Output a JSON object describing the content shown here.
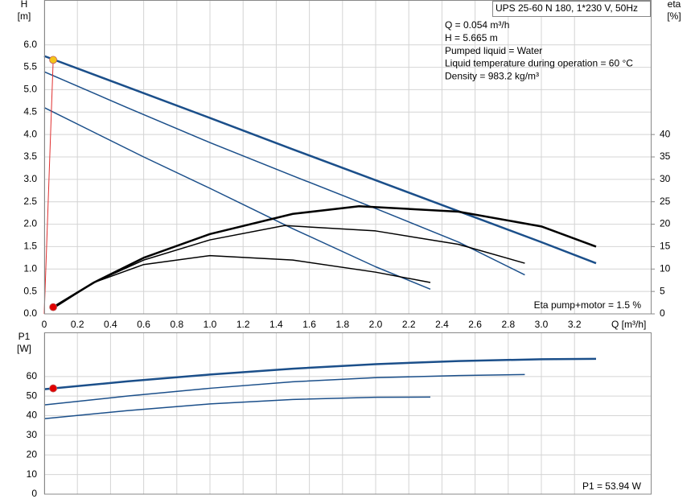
{
  "chart_data": [
    {
      "type": "line",
      "title": "UPS 25-60 N 180, 1*230 V, 50Hz",
      "y_label": "H",
      "y_unit": "[m]",
      "y2_label": "eta",
      "y2_unit": "[%]",
      "x_label": "Q [m³/h]",
      "info": [
        "Q = 0.054 m³/h",
        "H = 5.665 m",
        "Pumped liquid = Water",
        "Liquid temperature during operation = 60 °C",
        "Density = 983.2 kg/m³"
      ],
      "annotation": "Eta pump+motor = 1.5 %",
      "xlim": [
        0,
        3.665
      ],
      "ylim": [
        0,
        7
      ],
      "y2lim": [
        0,
        70
      ],
      "grid": true,
      "xticks": [
        {
          "value": 0,
          "label": "0"
        },
        0.2,
        0.4,
        0.6,
        0.8,
        {
          "value": 1,
          "label": "1.0"
        },
        1.2,
        1.4,
        1.6,
        1.8,
        {
          "value": 2,
          "label": "2.0"
        },
        2.2,
        2.4,
        2.6,
        2.8,
        {
          "value": 3,
          "label": "3.0"
        },
        3.2
      ],
      "yticks": [
        {
          "value": 0,
          "label": "0.0"
        },
        0.5,
        {
          "value": 1,
          "label": "1.0"
        },
        1.5,
        {
          "value": 2,
          "label": "2.0"
        },
        2.5,
        {
          "value": 3,
          "label": "3.0"
        },
        3.5,
        {
          "value": 4,
          "label": "4.0"
        },
        4.5,
        {
          "value": 5,
          "label": "5.0"
        },
        5.5,
        {
          "value": 6,
          "label": "6.0"
        }
      ],
      "y2ticks": [
        0,
        5,
        10,
        15,
        20,
        25,
        30,
        35,
        40
      ],
      "series": [
        {
          "color": "#1b4f8a",
          "line_width": 2.5,
          "x": [
            0,
            0.5,
            1,
            1.5,
            2,
            2.5,
            3,
            3.33
          ],
          "values": [
            5.75,
            5.06,
            4.37,
            3.67,
            2.98,
            2.29,
            1.6,
            1.13
          ]
        },
        {
          "color": "#1b4f8a",
          "line_width": 1.5,
          "x": [
            0,
            0.5,
            1,
            1.5,
            2,
            2.5,
            2.9
          ],
          "values": [
            5.4,
            4.6,
            3.82,
            3.08,
            2.35,
            1.6,
            0.87
          ]
        },
        {
          "color": "#1b4f8a",
          "line_width": 1.5,
          "x": [
            0,
            0.3,
            0.6,
            1,
            1.5,
            2,
            2.33
          ],
          "values": [
            4.6,
            4.05,
            3.5,
            2.8,
            1.9,
            1.05,
            0.55
          ]
        },
        {
          "color": "#000000",
          "line_width": 2.5,
          "axis": "y2",
          "x": [
            0.054,
            0.3,
            0.6,
            1,
            1.5,
            1.9,
            2.5,
            3,
            3.33
          ],
          "values": [
            1.5,
            7,
            12.5,
            17.8,
            22.3,
            24,
            22.8,
            19.5,
            15
          ]
        },
        {
          "color": "#000000",
          "line_width": 1.5,
          "axis": "y2",
          "x": [
            0.054,
            0.3,
            0.6,
            1,
            1.45,
            2,
            2.5,
            2.9
          ],
          "values": [
            1.3,
            7,
            12,
            16.5,
            19.7,
            18.5,
            15.5,
            11.3
          ]
        },
        {
          "color": "#000000",
          "line_width": 1.5,
          "axis": "y2",
          "x": [
            0.054,
            0.3,
            0.6,
            1,
            1.5,
            2,
            2.33
          ],
          "values": [
            1.2,
            7,
            11,
            13,
            12,
            9.3,
            7
          ]
        },
        {
          "color": "#e03030",
          "line_width": 1,
          "x": [
            0,
            0.054
          ],
          "values": [
            0,
            5.665
          ]
        }
      ],
      "points": [
        {
          "color": "#f5c518",
          "x": 0.054,
          "y": 5.665
        },
        {
          "color": "#e00000",
          "axis": "y2",
          "x": 0.054,
          "y": 1.5
        }
      ]
    },
    {
      "type": "line",
      "y_label": "P1",
      "y_unit": "[W]",
      "annotation": "P1 = 53.94 W",
      "ylim": [
        0,
        82.5
      ],
      "grid": true,
      "yticks": [
        0,
        10,
        20,
        30,
        40,
        50,
        60
      ],
      "series": [
        {
          "color": "#1b4f8a",
          "line_width": 2.5,
          "x": [
            0,
            0.5,
            1,
            1.5,
            2,
            2.5,
            3,
            3.33
          ],
          "values": [
            53.5,
            57.5,
            61,
            64,
            66.3,
            67.9,
            68.8,
            69
          ]
        },
        {
          "color": "#1b4f8a",
          "line_width": 1.5,
          "x": [
            0,
            0.5,
            1,
            1.5,
            2,
            2.5,
            2.9
          ],
          "values": [
            45.5,
            50,
            54,
            57.3,
            59.4,
            60.5,
            61
          ]
        },
        {
          "color": "#1b4f8a",
          "line_width": 1.5,
          "x": [
            0,
            0.5,
            1,
            1.5,
            2,
            2.33
          ],
          "values": [
            38.5,
            42.6,
            46,
            48.3,
            49.4,
            49.5
          ]
        }
      ],
      "points": [
        {
          "color": "#e00000",
          "x": 0.054,
          "y": 53.94
        }
      ]
    }
  ]
}
